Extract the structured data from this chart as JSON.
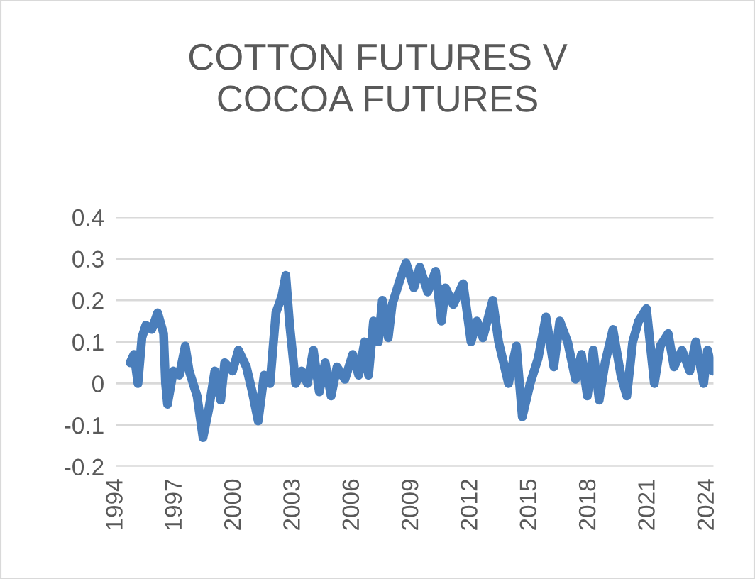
{
  "chart_data": {
    "type": "line",
    "title": "COTTON FUTURES V\nCOCOA FUTURES",
    "xlim": [
      1994,
      2024.3
    ],
    "xticks": [
      1994,
      1997,
      2000,
      2003,
      2006,
      2009,
      2012,
      2015,
      2018,
      2021,
      2024
    ],
    "ylim": [
      -0.2,
      0.4
    ],
    "yticks": [
      -0.2,
      -0.1,
      0,
      0.1,
      0.2,
      0.3,
      0.4
    ],
    "grid": "y",
    "legend": false,
    "marker": "none",
    "line_style": "solid",
    "series": [
      {
        "color": "#4a7ebb",
        "x": [
          1994.7,
          1994.9,
          1995.1,
          1995.3,
          1995.5,
          1995.8,
          1996.1,
          1996.4,
          1996.5,
          1996.6,
          1996.9,
          1997.2,
          1997.5,
          1997.7,
          1998.1,
          1998.4,
          1998.7,
          1999.0,
          1999.3,
          1999.5,
          1999.9,
          2000.2,
          2000.6,
          2000.9,
          2001.2,
          2001.5,
          2001.8,
          2002.1,
          2002.4,
          2002.6,
          2002.8,
          2003.1,
          2003.4,
          2003.7,
          2004.0,
          2004.3,
          2004.6,
          2004.9,
          2005.2,
          2005.6,
          2006.0,
          2006.3,
          2006.6,
          2006.8,
          2007.05,
          2007.3,
          2007.5,
          2007.8,
          2008.0,
          2008.4,
          2008.7,
          2009.1,
          2009.4,
          2009.8,
          2010.2,
          2010.5,
          2010.7,
          2011.1,
          2011.6,
          2012.0,
          2012.3,
          2012.6,
          2013.1,
          2013.4,
          2013.9,
          2014.3,
          2014.6,
          2015.0,
          2015.4,
          2015.8,
          2016.2,
          2016.5,
          2016.9,
          2017.3,
          2017.6,
          2017.9,
          2018.2,
          2018.5,
          2018.8,
          2019.2,
          2019.6,
          2019.9,
          2020.2,
          2020.5,
          2020.9,
          2021.3,
          2021.6,
          2022.0,
          2022.3,
          2022.7,
          2023.1,
          2023.4,
          2023.8,
          2024.0,
          2024.25
        ],
        "values": [
          0.05,
          0.07,
          0.0,
          0.11,
          0.14,
          0.13,
          0.17,
          0.12,
          0.0,
          -0.05,
          0.03,
          0.02,
          0.09,
          0.03,
          -0.03,
          -0.13,
          -0.06,
          0.03,
          -0.04,
          0.05,
          0.03,
          0.08,
          0.04,
          -0.02,
          -0.09,
          0.02,
          0.0,
          0.17,
          0.21,
          0.26,
          0.14,
          0.0,
          0.03,
          0.0,
          0.08,
          -0.02,
          0.05,
          -0.03,
          0.04,
          0.01,
          0.07,
          0.02,
          0.1,
          0.02,
          0.15,
          0.1,
          0.2,
          0.11,
          0.19,
          0.25,
          0.29,
          0.23,
          0.28,
          0.22,
          0.27,
          0.15,
          0.23,
          0.19,
          0.24,
          0.1,
          0.15,
          0.11,
          0.2,
          0.1,
          0.0,
          0.09,
          -0.08,
          0.0,
          0.06,
          0.16,
          0.04,
          0.15,
          0.1,
          0.01,
          0.07,
          -0.03,
          0.08,
          -0.04,
          0.05,
          0.13,
          0.02,
          -0.03,
          0.1,
          0.15,
          0.18,
          0.0,
          0.09,
          0.12,
          0.04,
          0.08,
          0.03,
          0.1,
          0.0,
          0.08,
          0.03
        ]
      }
    ]
  }
}
